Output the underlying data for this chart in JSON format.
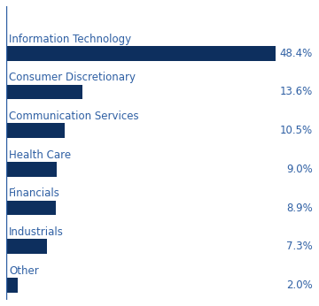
{
  "categories": [
    "Information Technology",
    "Consumer Discretionary",
    "Communication Services",
    "Health Care",
    "Financials",
    "Industrials",
    "Other"
  ],
  "values": [
    48.4,
    13.6,
    10.5,
    9.0,
    8.9,
    7.3,
    2.0
  ],
  "labels": [
    "48.4%",
    "13.6%",
    "10.5%",
    "9.0%",
    "8.9%",
    "7.3%",
    "2.0%"
  ],
  "bar_color": "#0d2f5e",
  "text_color": "#2e5fa3",
  "background_color": "#ffffff",
  "bar_height": 0.38,
  "xlim": [
    0,
    55
  ],
  "figsize": [
    3.6,
    3.46
  ],
  "dpi": 100,
  "cat_fontsize": 8.5,
  "val_fontsize": 8.5
}
